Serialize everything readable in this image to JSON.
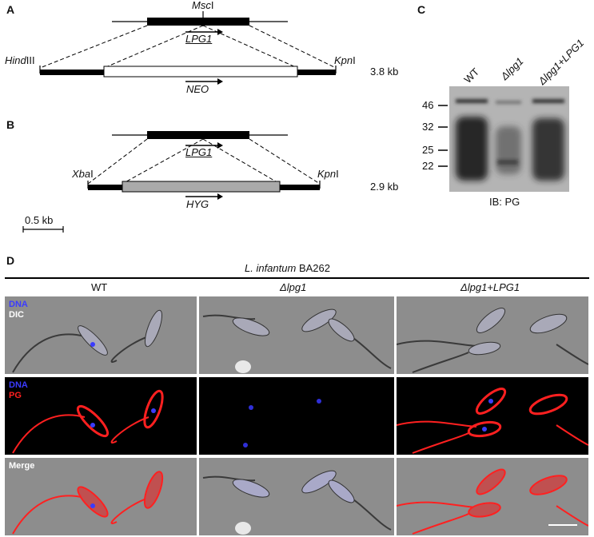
{
  "panelA": {
    "label": "A",
    "site_top": "Msc",
    "site_top_suffix": "I",
    "gene_top": "LPG1",
    "site_left": "Hind",
    "site_left_suffix": "III",
    "site_right": "Kpn",
    "site_right_suffix": "I",
    "gene_bottom": "NEO",
    "size": "3.8 kb"
  },
  "panelB": {
    "label": "B",
    "gene_top": "LPG1",
    "site_left": "Xba",
    "site_left_suffix": "I",
    "site_right": "Kpn",
    "site_right_suffix": "I",
    "gene_bottom": "HYG",
    "size": "2.9 kb",
    "scale": "0.5 kb"
  },
  "panelC": {
    "label": "C",
    "lanes": [
      "WT",
      "Δlpg1",
      "Δlpg1+LPG1"
    ],
    "markers": [
      "46",
      "32",
      "25",
      "22"
    ],
    "footer": "IB: PG"
  },
  "panelD": {
    "label": "D",
    "title_italic": "L. infantum",
    "title_rest": " BA262",
    "columns": [
      "WT",
      "Δlpg1",
      "Δlpg1+LPG1"
    ],
    "row1_labels": [
      "DNA",
      "DIC"
    ],
    "row2_labels": [
      "DNA",
      "PG"
    ],
    "row3_label": "Merge",
    "colors": {
      "dna": "#3b3bff",
      "pg": "#ff2020",
      "dic": "#ffffff"
    }
  }
}
